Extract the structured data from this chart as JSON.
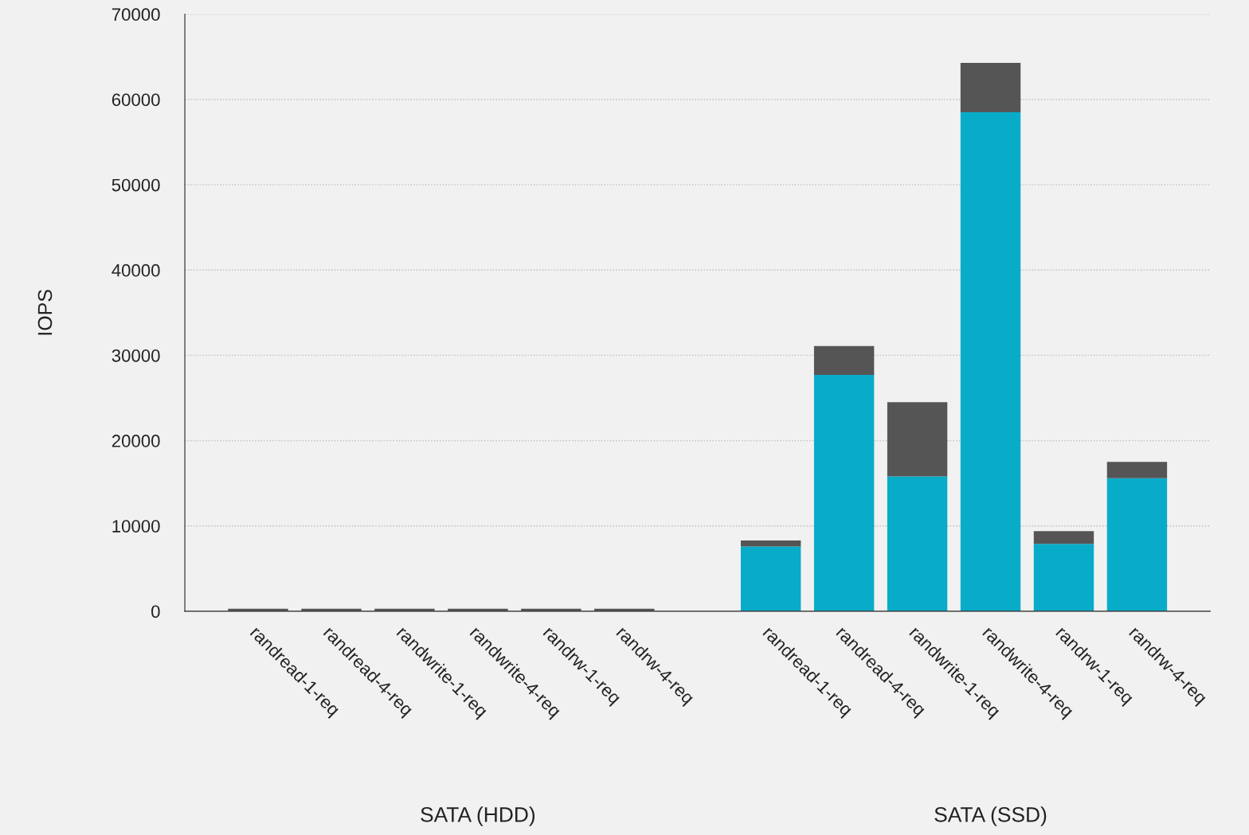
{
  "chart_data": {
    "type": "bar",
    "ylabel": "IOPS",
    "stacked": true,
    "categories": [
      "randread-1-req",
      "randread-4-req",
      "randwrite-1-req",
      "randwrite-4-req",
      "randrw-1-req",
      "randrw-4-req",
      null,
      "randread-1-req",
      "randread-4-req",
      "randwrite-1-req",
      "randwrite-4-req",
      "randrw-1-req",
      "randrw-4-req"
    ],
    "series": [
      {
        "color": "#08acc8",
        "values": [
          null,
          null,
          null,
          null,
          null,
          null,
          null,
          7600,
          27700,
          15800,
          58500,
          7900,
          15600
        ]
      },
      {
        "color": "#555555",
        "values": [
          300,
          300,
          300,
          300,
          300,
          300,
          null,
          700,
          3400,
          8700,
          5800,
          1500,
          1900
        ]
      }
    ],
    "ylim": [
      0,
      70000
    ],
    "yticks": [
      0,
      10000,
      20000,
      30000,
      40000,
      50000,
      60000,
      70000
    ],
    "grid": "y",
    "annotations": [
      "SATA (HDD)",
      "SATA (SSD)"
    ]
  }
}
